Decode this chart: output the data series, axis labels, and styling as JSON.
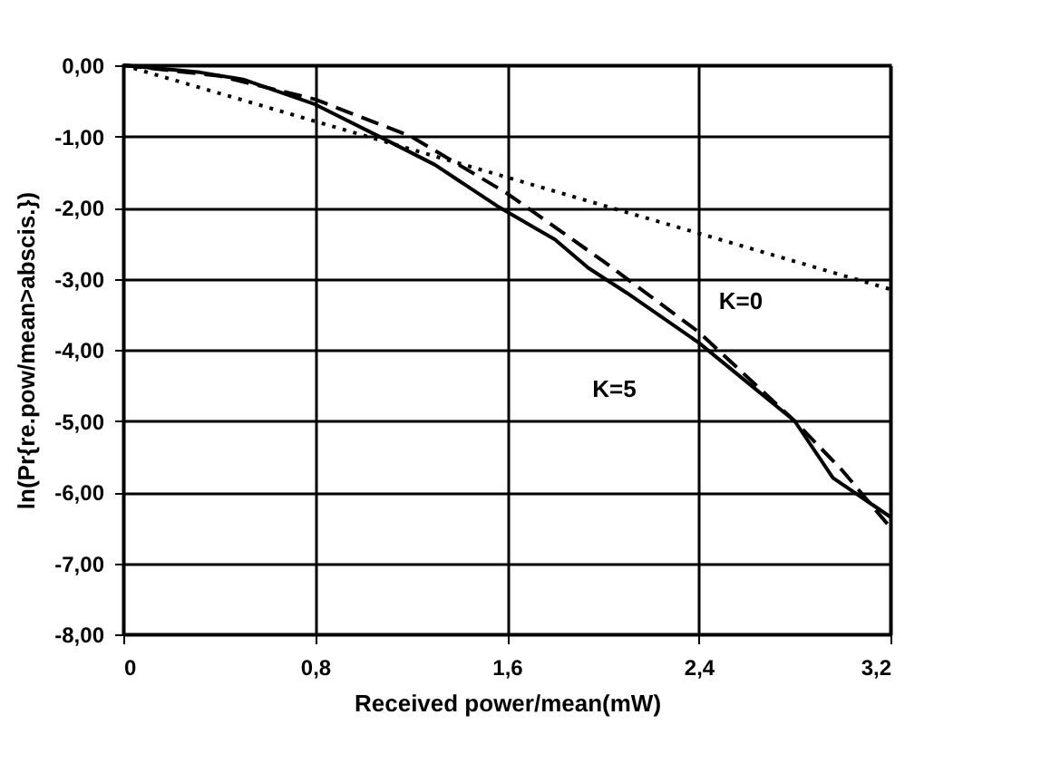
{
  "chart_data": {
    "type": "line",
    "xlabel": "Received power/mean(mW)",
    "ylabel": "ln(Pr{re.pow/mean>abscis.})",
    "xlim": [
      0,
      3.2
    ],
    "ylim": [
      -8,
      0
    ],
    "xticks": [
      {
        "value": 0,
        "label": "0"
      },
      {
        "value": 0.8,
        "label": "0,8"
      },
      {
        "value": 1.6,
        "label": "1,6"
      },
      {
        "value": 2.4,
        "label": "2,4"
      },
      {
        "value": 3.2,
        "label": "3,2"
      }
    ],
    "yticks": [
      {
        "value": 0,
        "label": "0,00"
      },
      {
        "value": -1,
        "label": "-1,00"
      },
      {
        "value": -2,
        "label": "-2,00"
      },
      {
        "value": -3,
        "label": "-3,00"
      },
      {
        "value": -4,
        "label": "-4,00"
      },
      {
        "value": -5,
        "label": "-5,00"
      },
      {
        "value": -6,
        "label": "-6,00"
      },
      {
        "value": -7,
        "label": "-7,00"
      },
      {
        "value": -8,
        "label": "-8,00"
      }
    ],
    "grid": true,
    "series": [
      {
        "color": "#000000",
        "line_style": "solid",
        "x": [
          0,
          0.32,
          0.5,
          0.8,
          1.09,
          1.3,
          1.56,
          1.8,
          1.94,
          2.1,
          2.4,
          2.6,
          2.8,
          2.96,
          3.2
        ],
        "values": [
          0,
          -0.1,
          -0.2,
          -0.55,
          -1.04,
          -1.4,
          -1.98,
          -2.45,
          -2.85,
          -3.2,
          -3.9,
          -4.45,
          -5.0,
          -5.8,
          -6.35
        ]
      },
      {
        "color": "#000000",
        "line_style": "dashed",
        "x": [
          0,
          0.4,
          0.8,
          1.2,
          1.6,
          2.0,
          2.4,
          2.8,
          3.0,
          3.2
        ],
        "values": [
          0,
          -0.15,
          -0.48,
          -1.0,
          -1.8,
          -2.75,
          -3.75,
          -5.0,
          -5.7,
          -6.5
        ]
      },
      {
        "color": "#000000",
        "line_style": "dotted",
        "x": [
          0,
          3.2
        ],
        "values": [
          0,
          -3.15
        ]
      }
    ],
    "annotations": [
      "K=0",
      "K=5"
    ]
  }
}
